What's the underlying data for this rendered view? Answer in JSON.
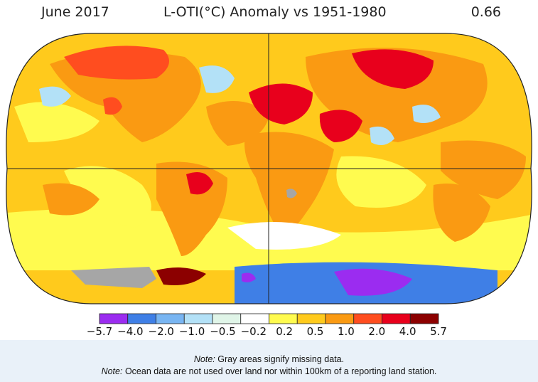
{
  "header": {
    "date": "June 2017",
    "title": "L-OTI(°C) Anomaly vs 1951-1980",
    "global_mean": "0.66"
  },
  "legend": {
    "ticks": [
      "−5.7",
      "−4.0",
      "−2.0",
      "−1.0",
      "−0.5",
      "−0.2",
      "0.2",
      "0.5",
      "1.0",
      "2.0",
      "4.0",
      "5.7"
    ],
    "colors": [
      "#9b2cf0",
      "#3f7fe6",
      "#78b5f2",
      "#b3e1f7",
      "#e0f5e8",
      "#ffffff",
      "#fffb4f",
      "#ffca1c",
      "#fa9a12",
      "#ff4d1f",
      "#e8001c",
      "#8c0000"
    ]
  },
  "notes": [
    {
      "label": "Note:",
      "text": " Gray areas signify missing data."
    },
    {
      "label": "Note:",
      "text": " Ocean data are not used over land nor within 100km of a reporting land station."
    }
  ],
  "palette": {
    "ocean": "#ffca1c",
    "warm_land": "#fa9a12",
    "hot": "#ff4d1f",
    "very_hot": "#e8001c",
    "extreme": "#8c0000",
    "mild": "#fffb4f",
    "cool": "#b3e1f7",
    "cold": "#3f7fe6",
    "very_cold": "#9b2cf0",
    "near_zero": "#ffffff",
    "slight_cool": "#e0f5e8",
    "missing": "#a6a6a6"
  }
}
